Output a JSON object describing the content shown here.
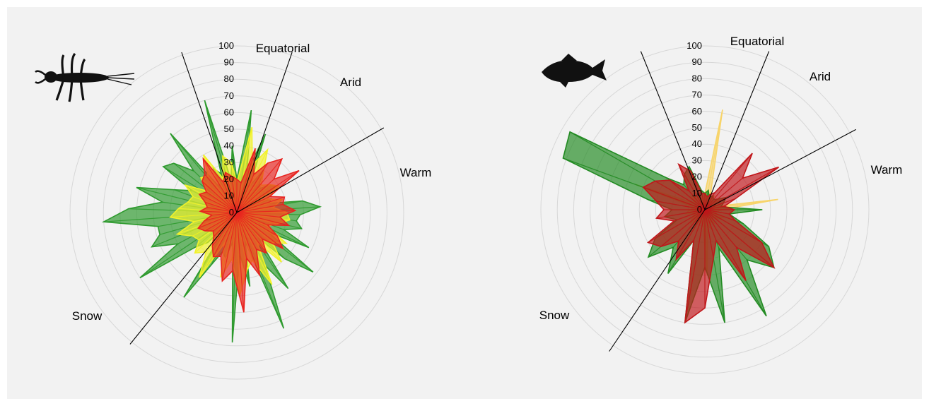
{
  "colors": {
    "background": "#f2f2f2",
    "green": "#2e9a2e",
    "yellow": "#f2f22a",
    "red": "#e8231f",
    "light_orange": "#f7d46a",
    "dark_red": "#c0161a",
    "dark_green": "#228b22"
  },
  "chart_data": [
    {
      "type": "radar",
      "icon": "insect-icon",
      "r_ticks": [
        0,
        10,
        20,
        30,
        40,
        50,
        60,
        70,
        80,
        90,
        100
      ],
      "r_tick_labels": [
        "0",
        "10",
        "20",
        "30",
        "40",
        "50",
        "60",
        "70",
        "80",
        "90",
        "100"
      ],
      "rlim": [
        0,
        100
      ],
      "sector_labels": [
        "Equatorial",
        "Arid",
        "Warm",
        "Snow"
      ],
      "sector_boundary_angles_deg": [
        -19,
        19,
        60,
        219
      ],
      "series": [
        {
          "color": "green",
          "angles_deg": [
            0,
            8,
            14,
            20,
            26,
            32,
            38,
            44,
            50,
            56,
            62,
            68,
            74,
            80,
            86,
            92,
            98,
            104,
            110,
            116,
            122,
            128,
            134,
            140,
            146,
            152,
            158,
            164,
            170,
            176,
            182,
            188,
            194,
            200,
            206,
            212,
            218,
            224,
            230,
            236,
            242,
            248,
            254,
            260,
            266,
            272,
            278,
            284,
            290,
            296,
            302,
            308,
            314,
            320,
            326,
            332,
            338,
            344,
            350,
            356
          ],
          "values": [
            20,
            62,
            25,
            50,
            18,
            30,
            22,
            20,
            26,
            28,
            15,
            22,
            20,
            40,
            50,
            38,
            36,
            40,
            30,
            48,
            22,
            58,
            40,
            20,
            55,
            36,
            75,
            18,
            45,
            25,
            78,
            18,
            28,
            25,
            35,
            60,
            10,
            25,
            32,
            70,
            40,
            55,
            48,
            48,
            80,
            65,
            45,
            62,
            40,
            30,
            52,
            48,
            36,
            62,
            18,
            30,
            25,
            70,
            20,
            40
          ]
        },
        {
          "color": "yellow",
          "angles_deg": [
            0,
            10,
            18,
            26,
            34,
            42,
            50,
            58,
            66,
            74,
            82,
            90,
            98,
            106,
            114,
            122,
            130,
            138,
            146,
            154,
            162,
            170,
            178,
            186,
            194,
            202,
            210,
            218,
            226,
            234,
            242,
            250,
            258,
            266,
            274,
            282,
            290,
            298,
            306,
            314,
            322,
            330,
            338,
            346,
            354
          ],
          "values": [
            18,
            52,
            30,
            42,
            28,
            22,
            26,
            30,
            20,
            28,
            22,
            30,
            32,
            25,
            20,
            35,
            28,
            40,
            22,
            48,
            30,
            35,
            50,
            28,
            40,
            20,
            45,
            30,
            35,
            28,
            30,
            38,
            26,
            40,
            35,
            30,
            28,
            35,
            22,
            30,
            28,
            40,
            22,
            35,
            30
          ]
        },
        {
          "color": "red",
          "angles_deg": [
            0,
            8,
            16,
            24,
            32,
            40,
            48,
            56,
            64,
            72,
            80,
            88,
            96,
            104,
            112,
            120,
            128,
            136,
            144,
            152,
            160,
            168,
            176,
            184,
            192,
            200,
            208,
            216,
            224,
            232,
            240,
            248,
            256,
            264,
            272,
            280,
            288,
            296,
            304,
            312,
            320,
            328,
            336,
            344,
            352
          ],
          "values": [
            20,
            18,
            40,
            25,
            35,
            42,
            30,
            45,
            22,
            30,
            28,
            35,
            26,
            32,
            20,
            28,
            35,
            22,
            30,
            25,
            40,
            28,
            60,
            35,
            42,
            28,
            30,
            25,
            20,
            18,
            22,
            25,
            20,
            15,
            22,
            18,
            20,
            25,
            22,
            28,
            30,
            38,
            20,
            25,
            22
          ]
        }
      ]
    },
    {
      "type": "radar",
      "icon": "fish-icon",
      "r_ticks": [
        0,
        10,
        20,
        30,
        40,
        50,
        60,
        70,
        80,
        90,
        100
      ],
      "r_tick_labels": [
        "0",
        "10",
        "20",
        "30",
        "40",
        "50",
        "60",
        "70",
        "80",
        "90",
        "100"
      ],
      "rlim": [
        0,
        100
      ],
      "sector_labels": [
        "Equatorial",
        "Arid",
        "Warm",
        "Snow"
      ],
      "sector_boundary_angles_deg": [
        -22,
        22,
        62,
        214
      ],
      "series": [
        {
          "color": "light_orange",
          "angles_deg": [
            0,
            10,
            18,
            26,
            34,
            42,
            50,
            58,
            66,
            74,
            82,
            90,
            98,
            106,
            114,
            122,
            130,
            138,
            146,
            154,
            162,
            170,
            178,
            186,
            194,
            202,
            210,
            218,
            226,
            234,
            242,
            250,
            258,
            266,
            274,
            282,
            290,
            298,
            306,
            314,
            322,
            330,
            338,
            346,
            354
          ],
          "values": [
            10,
            62,
            12,
            8,
            10,
            6,
            8,
            10,
            6,
            8,
            45,
            10,
            8,
            6,
            12,
            10,
            8,
            6,
            10,
            8,
            12,
            10,
            40,
            10,
            8,
            6,
            10,
            8,
            12,
            10,
            8,
            6,
            12,
            10,
            8,
            6,
            45,
            10,
            8,
            12,
            10,
            8,
            10,
            6,
            8
          ]
        },
        {
          "color": "dark_green",
          "angles_deg": [
            0,
            10,
            20,
            30,
            40,
            50,
            60,
            70,
            80,
            90,
            100,
            110,
            120,
            130,
            140,
            150,
            160,
            170,
            180,
            190,
            200,
            210,
            220,
            230,
            240,
            250,
            260,
            270,
            280,
            290,
            300,
            310,
            320,
            330,
            340,
            350
          ],
          "values": [
            10,
            12,
            8,
            10,
            8,
            10,
            15,
            12,
            10,
            35,
            15,
            25,
            45,
            55,
            40,
            75,
            25,
            70,
            35,
            70,
            20,
            45,
            30,
            45,
            35,
            18,
            25,
            20,
            35,
            92,
            95,
            30,
            20,
            25,
            28,
            12
          ]
        },
        {
          "color": "dark_red",
          "angles_deg": [
            0,
            10,
            20,
            30,
            40,
            50,
            60,
            70,
            80,
            90,
            100,
            110,
            120,
            130,
            140,
            150,
            160,
            170,
            180,
            190,
            200,
            210,
            220,
            230,
            240,
            250,
            260,
            270,
            280,
            290,
            300,
            310,
            320,
            330,
            340,
            350
          ],
          "values": [
            10,
            8,
            10,
            12,
            45,
            30,
            52,
            20,
            12,
            18,
            15,
            20,
            40,
            55,
            30,
            50,
            20,
            30,
            60,
            70,
            20,
            35,
            25,
            35,
            40,
            20,
            30,
            25,
            30,
            40,
            35,
            28,
            15,
            32,
            25,
            10
          ]
        }
      ]
    }
  ]
}
